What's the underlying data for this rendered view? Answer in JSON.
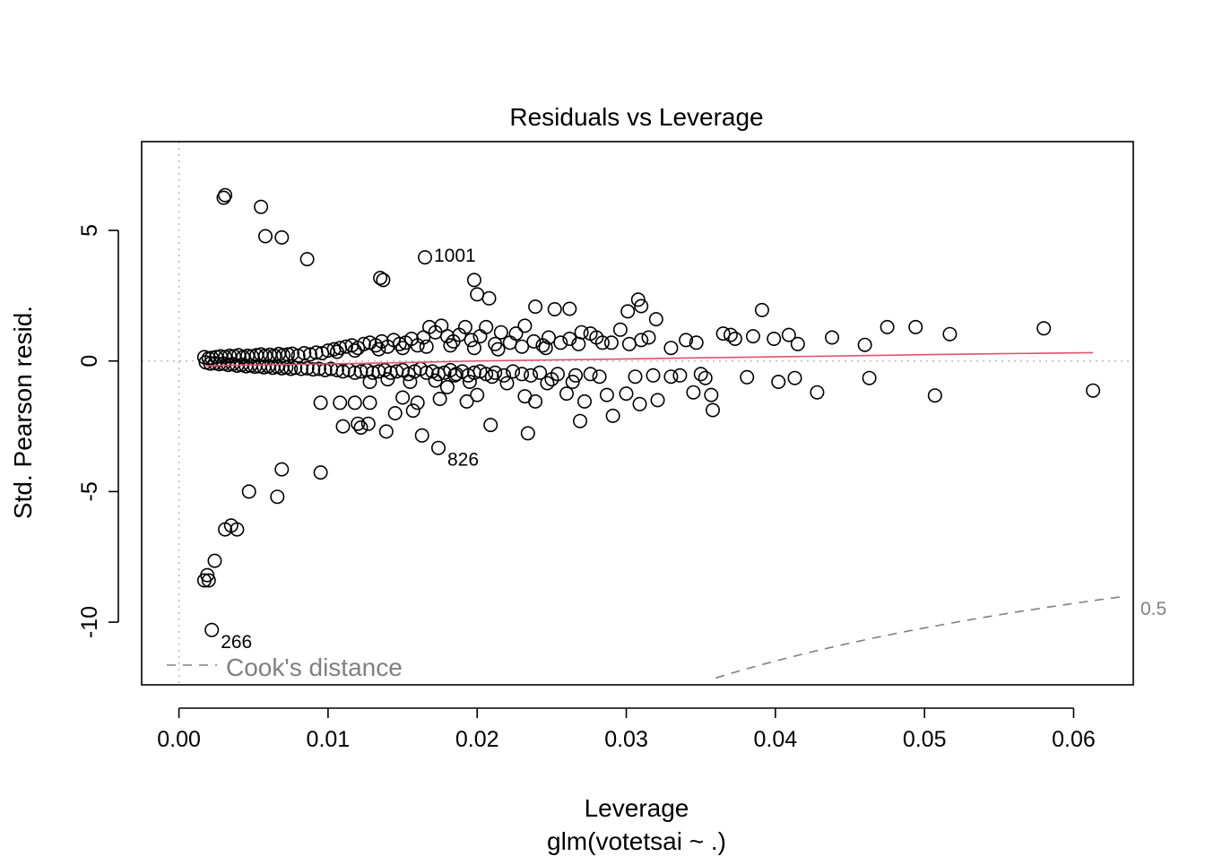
{
  "chart_data": {
    "type": "scatter",
    "title": "Residuals vs Leverage",
    "xlabel": "Leverage",
    "sublabel": "glm(votetsai ~ .)",
    "ylabel": "Std. Pearson resid.",
    "xlim": [
      -0.0025,
      0.064
    ],
    "ylim": [
      -12.4,
      8.4
    ],
    "x_ticks": [
      0.0,
      0.01,
      0.02,
      0.03,
      0.04,
      0.05,
      0.06
    ],
    "x_tick_labels": [
      "0.00",
      "0.01",
      "0.02",
      "0.03",
      "0.04",
      "0.05",
      "0.06"
    ],
    "y_ticks": [
      -10,
      -5,
      0,
      5
    ],
    "y_tick_labels": [
      "-10",
      "-5",
      "0",
      "5"
    ],
    "grid": false,
    "reference_lines": [
      {
        "orientation": "horizontal",
        "value": 0,
        "style": "dotted",
        "color": "#bebebe"
      },
      {
        "orientation": "vertical",
        "value": 0,
        "style": "dotted",
        "color": "#bebebe"
      }
    ],
    "smoother": {
      "color": "#df536b",
      "x": [
        0.0018,
        0.004,
        0.008,
        0.012,
        0.016,
        0.02,
        0.025,
        0.03,
        0.035,
        0.04,
        0.045,
        0.05,
        0.055,
        0.0613
      ],
      "y": [
        -0.18,
        -0.16,
        -0.13,
        -0.09,
        -0.05,
        0.0,
        0.04,
        0.08,
        0.12,
        0.16,
        0.2,
        0.24,
        0.28,
        0.32
      ]
    },
    "cooks_distance": {
      "legend": "Cook's distance",
      "levels": [
        {
          "level": 0.5,
          "label": "0.5"
        }
      ],
      "color": "#808080",
      "style": "dashed"
    },
    "labeled_points": [
      {
        "x": 0.0165,
        "y": 3.97,
        "label": "1001"
      },
      {
        "x": 0.0174,
        "y": -3.33,
        "label": "826"
      },
      {
        "x": 0.0022,
        "y": -10.3,
        "label": "266"
      }
    ],
    "points": [
      [
        0.003,
        6.25
      ],
      [
        0.0031,
        6.35
      ],
      [
        0.0055,
        5.9
      ],
      [
        0.0058,
        4.78
      ],
      [
        0.0069,
        4.73
      ],
      [
        0.0086,
        3.9
      ],
      [
        0.0135,
        3.18
      ],
      [
        0.0137,
        3.1
      ],
      [
        0.0198,
        3.1
      ],
      [
        0.02,
        2.55
      ],
      [
        0.0208,
        2.4
      ],
      [
        0.0239,
        2.08
      ],
      [
        0.0252,
        1.98
      ],
      [
        0.0262,
        2.0
      ],
      [
        0.0308,
        2.35
      ],
      [
        0.031,
        2.1
      ],
      [
        0.0301,
        1.9
      ],
      [
        0.032,
        1.6
      ],
      [
        0.0391,
        1.95
      ],
      [
        0.0475,
        1.3
      ],
      [
        0.0494,
        1.3
      ],
      [
        0.058,
        1.25
      ],
      [
        0.0517,
        1.03
      ],
      [
        0.0438,
        0.9
      ],
      [
        0.0409,
        1.0
      ],
      [
        0.046,
        0.62
      ],
      [
        0.0415,
        0.65
      ],
      [
        0.0365,
        1.05
      ],
      [
        0.037,
        1.0
      ],
      [
        0.0385,
        0.95
      ],
      [
        0.0373,
        0.85
      ],
      [
        0.034,
        0.8
      ],
      [
        0.0347,
        0.7
      ],
      [
        0.0399,
        0.85
      ],
      [
        0.033,
        0.5
      ],
      [
        0.0315,
        0.9
      ],
      [
        0.029,
        0.7
      ],
      [
        0.028,
        0.9
      ],
      [
        0.027,
        1.1
      ],
      [
        0.031,
        0.8
      ],
      [
        0.0613,
        -1.13
      ],
      [
        0.0507,
        -1.32
      ],
      [
        0.0463,
        -0.65
      ],
      [
        0.0428,
        -1.2
      ],
      [
        0.0413,
        -0.65
      ],
      [
        0.0402,
        -0.8
      ],
      [
        0.0381,
        -0.62
      ],
      [
        0.0358,
        -1.88
      ],
      [
        0.0357,
        -1.3
      ],
      [
        0.0353,
        -0.65
      ],
      [
        0.0345,
        -1.2
      ],
      [
        0.033,
        -0.6
      ],
      [
        0.0321,
        -1.5
      ],
      [
        0.0309,
        -1.65
      ],
      [
        0.03,
        -1.25
      ],
      [
        0.0291,
        -2.1
      ],
      [
        0.0287,
        -1.3
      ],
      [
        0.0272,
        -1.55
      ],
      [
        0.0269,
        -2.3
      ],
      [
        0.026,
        -1.25
      ],
      [
        0.0247,
        -0.85
      ],
      [
        0.0239,
        -1.55
      ],
      [
        0.0234,
        -2.77
      ],
      [
        0.0232,
        -1.35
      ],
      [
        0.0209,
        -2.45
      ],
      [
        0.02,
        -1.3
      ],
      [
        0.0195,
        -0.8
      ],
      [
        0.0193,
        -1.55
      ],
      [
        0.018,
        -1.0
      ],
      [
        0.0175,
        -1.45
      ],
      [
        0.0163,
        -2.85
      ],
      [
        0.016,
        -1.6
      ],
      [
        0.0157,
        -1.9
      ],
      [
        0.015,
        -1.4
      ],
      [
        0.0145,
        -2.0
      ],
      [
        0.0139,
        -2.7
      ],
      [
        0.0128,
        -1.6
      ],
      [
        0.0127,
        -2.4
      ],
      [
        0.0122,
        -2.55
      ],
      [
        0.012,
        -2.4
      ],
      [
        0.0118,
        -1.6
      ],
      [
        0.011,
        -2.5
      ],
      [
        0.0108,
        -1.6
      ],
      [
        0.0095,
        -1.6
      ],
      [
        0.0128,
        -0.8
      ],
      [
        0.014,
        -0.7
      ],
      [
        0.0155,
        -0.8
      ],
      [
        0.0172,
        -0.75
      ],
      [
        0.022,
        -0.85
      ],
      [
        0.025,
        -0.7
      ],
      [
        0.0276,
        -0.5
      ],
      [
        0.0264,
        -0.8
      ],
      [
        0.021,
        -0.6
      ],
      [
        0.0185,
        -0.55
      ],
      [
        0.0069,
        -4.15
      ],
      [
        0.0095,
        -4.27
      ],
      [
        0.0047,
        -5.0
      ],
      [
        0.0066,
        -5.2
      ],
      [
        0.0031,
        -6.45
      ],
      [
        0.0035,
        -6.3
      ],
      [
        0.0039,
        -6.45
      ],
      [
        0.0024,
        -7.65
      ],
      [
        0.0019,
        -8.2
      ],
      [
        0.0017,
        -8.4
      ],
      [
        0.002,
        -8.4
      ],
      [
        0.0022,
        -10.3
      ],
      [
        0.0174,
        -3.33
      ],
      [
        0.0165,
        3.97
      ],
      [
        0.0017,
        0.15
      ],
      [
        0.002,
        0.1
      ],
      [
        0.0022,
        0.12
      ],
      [
        0.0025,
        0.15
      ],
      [
        0.0028,
        0.18
      ],
      [
        0.0031,
        0.15
      ],
      [
        0.0034,
        0.2
      ],
      [
        0.0037,
        0.18
      ],
      [
        0.004,
        0.22
      ],
      [
        0.0043,
        0.15
      ],
      [
        0.0046,
        0.2
      ],
      [
        0.0049,
        0.18
      ],
      [
        0.0052,
        0.22
      ],
      [
        0.0055,
        0.25
      ],
      [
        0.0058,
        0.2
      ],
      [
        0.0061,
        0.24
      ],
      [
        0.0064,
        0.2
      ],
      [
        0.0067,
        0.27
      ],
      [
        0.007,
        0.22
      ],
      [
        0.0073,
        0.25
      ],
      [
        0.0076,
        0.28
      ],
      [
        0.008,
        0.2
      ],
      [
        0.0084,
        0.3
      ],
      [
        0.0088,
        0.25
      ],
      [
        0.0092,
        0.32
      ],
      [
        0.0096,
        0.3
      ],
      [
        0.01,
        0.4
      ],
      [
        0.0104,
        0.45
      ],
      [
        0.0108,
        0.5
      ],
      [
        0.0112,
        0.55
      ],
      [
        0.0116,
        0.6
      ],
      [
        0.012,
        0.5
      ],
      [
        0.0124,
        0.65
      ],
      [
        0.0128,
        0.7
      ],
      [
        0.0132,
        0.6
      ],
      [
        0.0136,
        0.75
      ],
      [
        0.014,
        0.55
      ],
      [
        0.0144,
        0.8
      ],
      [
        0.0148,
        0.65
      ],
      [
        0.0152,
        0.7
      ],
      [
        0.0156,
        0.85
      ],
      [
        0.016,
        0.6
      ],
      [
        0.0164,
        0.9
      ],
      [
        0.0168,
        1.3
      ],
      [
        0.0172,
        1.1
      ],
      [
        0.0176,
        1.35
      ],
      [
        0.018,
        0.95
      ],
      [
        0.0184,
        0.75
      ],
      [
        0.0188,
        1.0
      ],
      [
        0.0192,
        1.3
      ],
      [
        0.0196,
        0.8
      ],
      [
        0.0202,
        0.95
      ],
      [
        0.0206,
        1.3
      ],
      [
        0.0212,
        0.65
      ],
      [
        0.0216,
        1.1
      ],
      [
        0.0222,
        0.7
      ],
      [
        0.0226,
        1.05
      ],
      [
        0.0232,
        1.35
      ],
      [
        0.0238,
        0.75
      ],
      [
        0.0244,
        0.6
      ],
      [
        0.0248,
        0.9
      ],
      [
        0.0256,
        0.7
      ],
      [
        0.0262,
        0.85
      ],
      [
        0.0268,
        0.65
      ],
      [
        0.0276,
        1.05
      ],
      [
        0.0284,
        0.7
      ],
      [
        0.0296,
        1.2
      ],
      [
        0.0302,
        0.65
      ],
      [
        0.0106,
        0.35
      ],
      [
        0.0118,
        0.4
      ],
      [
        0.0134,
        0.45
      ],
      [
        0.015,
        0.5
      ],
      [
        0.0166,
        0.55
      ],
      [
        0.0182,
        0.6
      ],
      [
        0.0198,
        0.5
      ],
      [
        0.0214,
        0.45
      ],
      [
        0.023,
        0.55
      ],
      [
        0.0246,
        0.5
      ],
      [
        0.0018,
        -0.05
      ],
      [
        0.0021,
        -0.1
      ],
      [
        0.0024,
        -0.08
      ],
      [
        0.0027,
        -0.12
      ],
      [
        0.003,
        -0.1
      ],
      [
        0.0033,
        -0.15
      ],
      [
        0.0036,
        -0.12
      ],
      [
        0.0039,
        -0.18
      ],
      [
        0.0042,
        -0.15
      ],
      [
        0.0045,
        -0.2
      ],
      [
        0.0048,
        -0.17
      ],
      [
        0.0051,
        -0.22
      ],
      [
        0.0054,
        -0.2
      ],
      [
        0.0057,
        -0.24
      ],
      [
        0.006,
        -0.2
      ],
      [
        0.0063,
        -0.26
      ],
      [
        0.0066,
        -0.22
      ],
      [
        0.0069,
        -0.28
      ],
      [
        0.0072,
        -0.25
      ],
      [
        0.0075,
        -0.3
      ],
      [
        0.0078,
        -0.26
      ],
      [
        0.0082,
        -0.3
      ],
      [
        0.0086,
        -0.28
      ],
      [
        0.009,
        -0.32
      ],
      [
        0.0094,
        -0.3
      ],
      [
        0.0098,
        -0.35
      ],
      [
        0.0102,
        -0.3
      ],
      [
        0.0106,
        -0.35
      ],
      [
        0.011,
        -0.4
      ],
      [
        0.0114,
        -0.35
      ],
      [
        0.0118,
        -0.45
      ],
      [
        0.0122,
        -0.4
      ],
      [
        0.0126,
        -0.35
      ],
      [
        0.013,
        -0.45
      ],
      [
        0.0134,
        -0.4
      ],
      [
        0.0138,
        -0.35
      ],
      [
        0.0142,
        -0.45
      ],
      [
        0.0146,
        -0.4
      ],
      [
        0.015,
        -0.35
      ],
      [
        0.0154,
        -0.5
      ],
      [
        0.0158,
        -0.4
      ],
      [
        0.0162,
        -0.3
      ],
      [
        0.0166,
        -0.45
      ],
      [
        0.017,
        -0.4
      ],
      [
        0.0174,
        -0.5
      ],
      [
        0.0178,
        -0.45
      ],
      [
        0.0182,
        -0.35
      ],
      [
        0.0186,
        -0.5
      ],
      [
        0.019,
        -0.4
      ],
      [
        0.0194,
        -0.55
      ],
      [
        0.0198,
        -0.45
      ],
      [
        0.0202,
        -0.4
      ],
      [
        0.0206,
        -0.5
      ],
      [
        0.0212,
        -0.45
      ],
      [
        0.0218,
        -0.55
      ],
      [
        0.0224,
        -0.4
      ],
      [
        0.023,
        -0.5
      ],
      [
        0.0236,
        -0.55
      ],
      [
        0.0242,
        -0.45
      ],
      [
        0.0254,
        -0.5
      ],
      [
        0.0266,
        -0.55
      ],
      [
        0.0282,
        -0.6
      ],
      [
        0.0306,
        -0.6
      ],
      [
        0.0318,
        -0.55
      ],
      [
        0.0336,
        -0.55
      ],
      [
        0.035,
        -0.5
      ]
    ]
  }
}
